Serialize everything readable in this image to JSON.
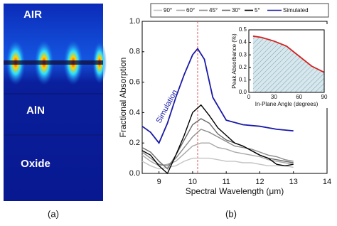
{
  "panel_a": {
    "labels": [
      "AIR",
      "AlN",
      "Oxide"
    ],
    "caption": "(a)"
  },
  "panel_b_caption": "(b)",
  "chart_data": [
    {
      "type": "line",
      "x_label": "Spectral Wavelength (μm)",
      "y_label": "Fractional Absorption",
      "annotation": "Simulation",
      "vline": 10.15,
      "vline_color": "#e05050",
      "xlim": [
        8.5,
        14
      ],
      "xticks": [
        9,
        10,
        11,
        12,
        13,
        14
      ],
      "ylim": [
        0,
        1.0
      ],
      "yticks": [
        {
          "value": 0,
          "label": "0.0"
        },
        0.2,
        0.4,
        0.6,
        0.8,
        {
          "value": 1.0,
          "label": "1.0"
        }
      ],
      "series": [
        {
          "name": "90°",
          "color": "#c4c4c4",
          "x": [
            8.5,
            8.75,
            9,
            9.25,
            9.5,
            9.75,
            10,
            10.25,
            10.5,
            10.75,
            11,
            11.25,
            11.5,
            11.75,
            12,
            12.25,
            12.5,
            12.75,
            13
          ],
          "values": [
            0.08,
            0.05,
            0.03,
            0.04,
            0.05,
            0.08,
            0.1,
            0.1,
            0.1,
            0.09,
            0.08,
            0.08,
            0.07,
            0.07,
            0.06,
            0.05,
            0.05,
            0.05,
            0.04
          ]
        },
        {
          "name": "60°",
          "color": "#a8a8a8",
          "x": [
            8.5,
            8.75,
            9,
            9.25,
            9.5,
            9.75,
            10,
            10.25,
            10.5,
            10.75,
            11,
            11.25,
            11.5,
            11.75,
            12,
            12.25,
            12.5,
            12.75,
            13
          ],
          "values": [
            0.12,
            0.08,
            0.05,
            0.06,
            0.08,
            0.13,
            0.18,
            0.2,
            0.2,
            0.17,
            0.16,
            0.14,
            0.13,
            0.12,
            0.11,
            0.09,
            0.08,
            0.07,
            0.06
          ]
        },
        {
          "name": "45°",
          "color": "#8c8c8c",
          "x": [
            8.5,
            8.75,
            9,
            9.25,
            9.5,
            9.75,
            10,
            10.25,
            10.5,
            10.75,
            11,
            11.25,
            11.5,
            11.75,
            12,
            12.25,
            12.5,
            12.75,
            13
          ],
          "values": [
            0.14,
            0.1,
            0.06,
            0.05,
            0.1,
            0.17,
            0.24,
            0.29,
            0.27,
            0.24,
            0.21,
            0.18,
            0.17,
            0.16,
            0.14,
            0.12,
            0.11,
            0.09,
            0.08
          ]
        },
        {
          "name": "30°",
          "color": "#6a6a6a",
          "x": [
            8.5,
            8.75,
            9,
            9.25,
            9.5,
            9.75,
            10,
            10.25,
            10.5,
            10.75,
            11,
            11.25,
            11.5,
            11.75,
            12,
            12.25,
            12.5,
            12.75,
            13
          ],
          "values": [
            0.17,
            0.14,
            0.08,
            0.03,
            0.12,
            0.22,
            0.32,
            0.36,
            0.33,
            0.26,
            0.22,
            0.2,
            0.18,
            0.15,
            0.12,
            0.1,
            0.09,
            0.08,
            0.07
          ]
        },
        {
          "name": "5°",
          "color": "#000000",
          "x": [
            8.5,
            8.75,
            9,
            9.25,
            9.5,
            9.75,
            10,
            10.25,
            10.5,
            10.75,
            11,
            11.25,
            11.5,
            11.75,
            12,
            12.25,
            12.5,
            12.75,
            13
          ],
          "values": [
            0.15,
            0.12,
            0.05,
            0.0,
            0.12,
            0.25,
            0.4,
            0.45,
            0.38,
            0.3,
            0.25,
            0.2,
            0.18,
            0.15,
            0.12,
            0.1,
            0.06,
            0.05,
            0.06
          ]
        },
        {
          "name": "Simulated",
          "color": "#1a1aa8",
          "x": [
            8.5,
            8.75,
            9,
            9.25,
            9.5,
            9.75,
            10,
            10.15,
            10.35,
            10.6,
            11,
            11.5,
            12,
            12.5,
            13
          ],
          "values": [
            0.31,
            0.27,
            0.2,
            0.33,
            0.5,
            0.65,
            0.78,
            0.82,
            0.75,
            0.5,
            0.35,
            0.32,
            0.31,
            0.29,
            0.28
          ]
        }
      ]
    },
    {
      "type": "area",
      "x_label": "In-Plane Angle (degrees)",
      "y_label": "Peak Absorbance (%)",
      "xlim": [
        0,
        90
      ],
      "xticks": [
        0,
        30,
        60,
        90
      ],
      "ylim": [
        0,
        0.5
      ],
      "yticks": [
        {
          "value": 0,
          "label": "0.0"
        },
        0.1,
        0.2,
        0.3,
        0.4,
        0.5
      ],
      "color": "#d42020",
      "x": [
        5,
        15,
        30,
        45,
        60,
        75,
        90
      ],
      "values": [
        0.45,
        0.44,
        0.41,
        0.37,
        0.29,
        0.21,
        0.16
      ]
    }
  ]
}
